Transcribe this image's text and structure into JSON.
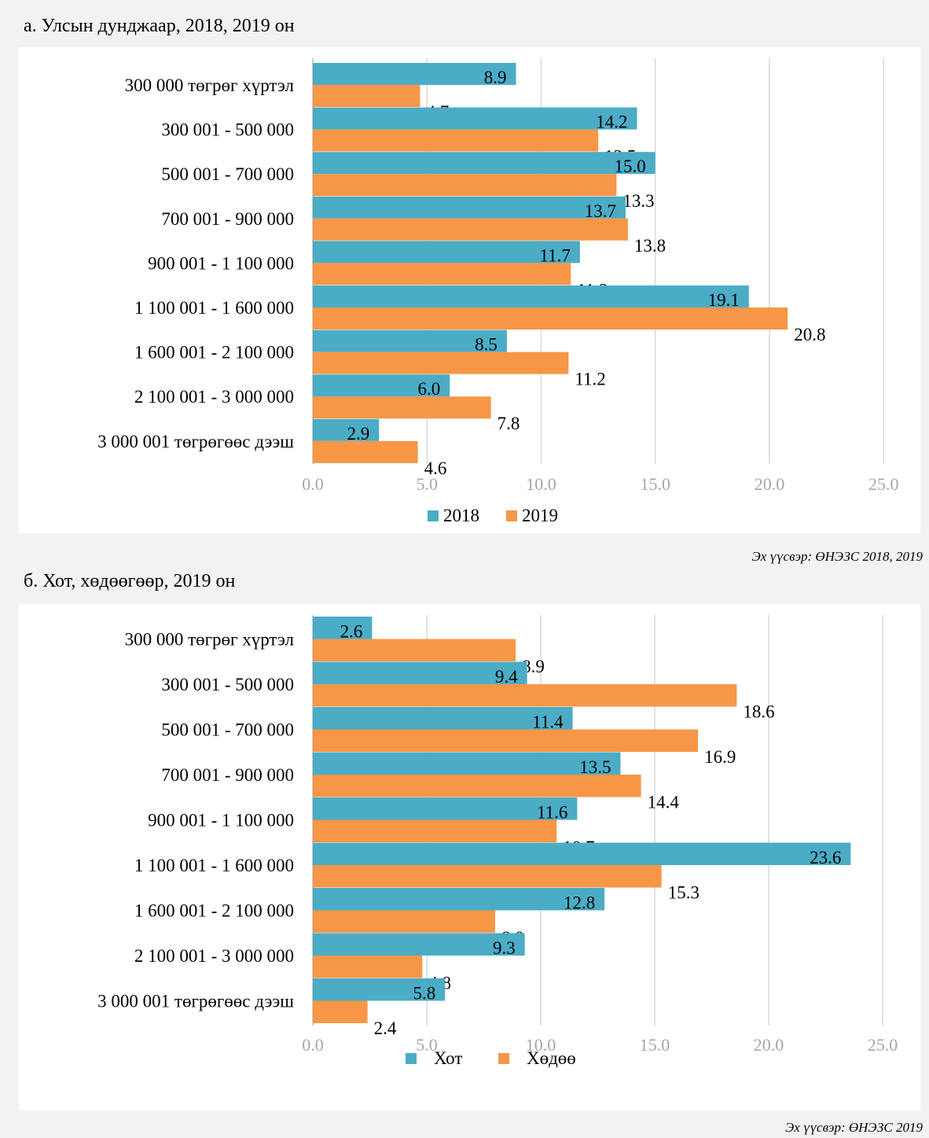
{
  "colors": {
    "series1": "#4bacc6",
    "series2": "#f79646"
  },
  "sections": [
    {
      "title": "а. Улсын дунджаар, 2018, 2019 он",
      "source": "Эх үүсвэр: ӨНЭЗС 2018, 2019"
    },
    {
      "title": "б. Хот, хөдөөгөөр, 2019 он",
      "source": "Эх үүсвэр: ӨНЭЗС 2019"
    }
  ],
  "chart_data": [
    {
      "type": "bar",
      "orientation": "horizontal",
      "categories": [
        "300 000 төгрөг хүртэл",
        "300 001 - 500 000",
        "500 001 - 700 000",
        "700 001 - 900 000",
        "900 001 - 1 100 000",
        "1 100 001 - 1 600 000",
        "1 600 001 - 2 100 000",
        "2 100 001 - 3 000 000",
        "3 000 001 төгрөгөөс дээш"
      ],
      "series": [
        {
          "name": "2018",
          "values": [
            8.9,
            14.2,
            15.0,
            13.7,
            11.7,
            19.1,
            8.5,
            6.0,
            2.9
          ]
        },
        {
          "name": "2019",
          "values": [
            4.7,
            12.5,
            13.3,
            13.8,
            11.3,
            20.8,
            11.2,
            7.8,
            4.6
          ]
        }
      ],
      "xticks": [
        "0.0",
        "5.0",
        "10.0",
        "15.0",
        "20.0",
        "25.0"
      ],
      "xlim": [
        0,
        25
      ],
      "grid": true,
      "legend": "bottom"
    },
    {
      "type": "bar",
      "orientation": "horizontal",
      "categories": [
        "300 000 төгрөг хүртэл",
        "300 001 - 500 000",
        "500 001 - 700 000",
        "700 001 - 900 000",
        "900 001 - 1 100 000",
        "1 100 001 - 1 600 000",
        "1 600 001 - 2 100 000",
        "2 100 001 - 3 000 000",
        "3 000 001 төгрөгөөс дээш"
      ],
      "series": [
        {
          "name": "Хот",
          "values": [
            2.6,
            9.4,
            11.4,
            13.5,
            11.6,
            23.6,
            12.8,
            9.3,
            5.8
          ]
        },
        {
          "name": "Хөдөө",
          "values": [
            8.9,
            18.6,
            16.9,
            14.4,
            10.7,
            15.3,
            8.0,
            4.8,
            2.4
          ]
        }
      ],
      "xticks": [
        "0.0",
        "5.0",
        "10.0",
        "15.0",
        "20.0",
        "25.0"
      ],
      "xlim": [
        0,
        25
      ],
      "grid": true,
      "legend": "bottom"
    }
  ]
}
